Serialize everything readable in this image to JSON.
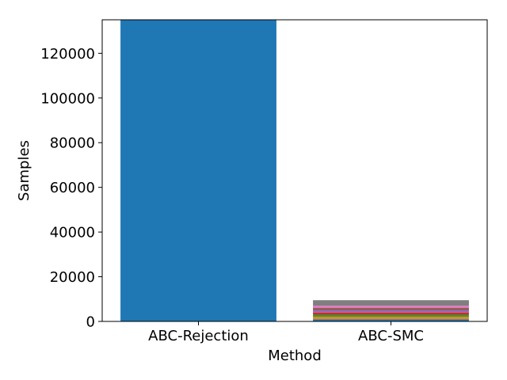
{
  "chart_data": {
    "type": "bar",
    "stacked": true,
    "title": "",
    "xlabel": "Method",
    "ylabel": "Samples",
    "categories": [
      "ABC-Rejection",
      "ABC-SMC"
    ],
    "ylim": [
      0,
      135000
    ],
    "yticks": [
      0,
      20000,
      40000,
      60000,
      80000,
      100000,
      120000
    ],
    "grid": false,
    "legend": "none",
    "bars": [
      {
        "category": "ABC-Rejection",
        "segments": [
          {
            "value": 135000,
            "color": "#1f77b4"
          }
        ]
      },
      {
        "category": "ABC-SMC",
        "segments": [
          {
            "value": 1000,
            "color": "#1f77b4"
          },
          {
            "value": 1000,
            "color": "#ff7f0e"
          },
          {
            "value": 1000,
            "color": "#2ca02c"
          },
          {
            "value": 1000,
            "color": "#d62728"
          },
          {
            "value": 1000,
            "color": "#9467bd"
          },
          {
            "value": 1000,
            "color": "#8c564b"
          },
          {
            "value": 1000,
            "color": "#e377c2"
          },
          {
            "value": 2500,
            "color": "#7f7f7f"
          }
        ]
      }
    ]
  }
}
